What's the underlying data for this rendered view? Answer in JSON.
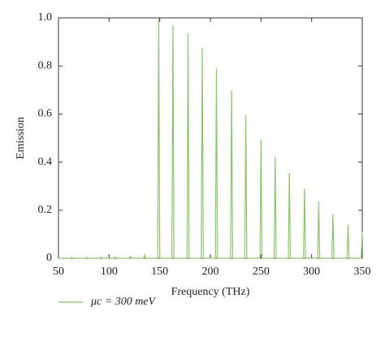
{
  "chart_data": {
    "type": "line",
    "xlabel": "Frequency (THz)",
    "ylabel": "Emission",
    "x": [
      50,
      62,
      63,
      64,
      77,
      78,
      79,
      91,
      92,
      93,
      105,
      106,
      107,
      120,
      121,
      122,
      134,
      135,
      136,
      148,
      149,
      150,
      162,
      163,
      164,
      177,
      178,
      179,
      191,
      192,
      193,
      205,
      206,
      207,
      220,
      221,
      222,
      234,
      235,
      236,
      249,
      250,
      251,
      263,
      264,
      265,
      277,
      278,
      279,
      292,
      293,
      294,
      306,
      307,
      308,
      320,
      321,
      322,
      335,
      336,
      337,
      349,
      350
    ],
    "series": [
      {
        "name": "μc = 300 meV",
        "color": "#8cc56e",
        "values": [
          0,
          0,
          0.004,
          0,
          0,
          0.004,
          0,
          0,
          0.005,
          0,
          0,
          0.006,
          0,
          0,
          0.008,
          0,
          0,
          0.015,
          0,
          0,
          1.0,
          0,
          0,
          0.97,
          0,
          0,
          0.935,
          0,
          0,
          0.875,
          0,
          0,
          0.79,
          0,
          0,
          0.7,
          0,
          0,
          0.595,
          0,
          0,
          0.495,
          0,
          0,
          0.42,
          0,
          0,
          0.355,
          0,
          0,
          0.29,
          0,
          0,
          0.235,
          0,
          0,
          0.185,
          0,
          0,
          0.14,
          0,
          0,
          0.11
        ]
      }
    ],
    "xlim": [
      50,
      350
    ],
    "ylim": [
      0,
      1
    ],
    "xticks": [
      50,
      100,
      150,
      200,
      250,
      300,
      350
    ],
    "yticks": [
      0,
      0.2,
      0.4,
      0.6,
      0.8,
      {
        "value": 1,
        "label": "1.0"
      }
    ]
  }
}
